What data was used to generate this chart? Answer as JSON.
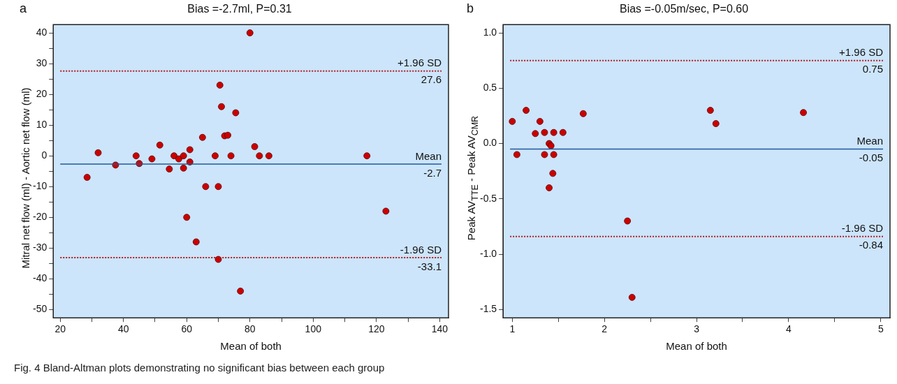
{
  "chart_data": [
    {
      "type": "scatter",
      "title": "Bias =-2.7ml, P=0.31",
      "xlabel": "Mean of both",
      "ylabel": "Mitral net flow (ml) - Aortic net flow (ml)",
      "annotations": [
        "a",
        "Fig. 4 Bland-Altman plots demonstrating no significant bias between each group",
        {
          "text": "27.6",
          "y": 27.6
        },
        {
          "text": "-2.7",
          "y": -2.7
        },
        {
          "text": "-33.1",
          "y": -33.1
        }
      ],
      "xlim": [
        17.8,
        142.8
      ],
      "xticks": [
        20,
        {
          "value": 30,
          "label": null
        },
        40,
        {
          "value": 50,
          "label": null
        },
        60,
        {
          "value": 70,
          "label": null
        },
        80,
        {
          "value": 90,
          "label": null
        },
        100,
        {
          "value": 110,
          "label": null
        },
        120,
        {
          "value": 130,
          "label": null
        },
        140
      ],
      "ylim": [
        -52.7,
        42.7
      ],
      "yticks": [
        -50,
        {
          "value": -45,
          "label": null
        },
        -40,
        {
          "value": -35,
          "label": null
        },
        -30,
        {
          "value": -25,
          "label": null
        },
        -20,
        {
          "value": -15,
          "label": null
        },
        -10,
        {
          "value": -5,
          "label": null
        },
        0,
        {
          "value": 5,
          "label": null
        },
        10,
        {
          "value": 15,
          "label": null
        },
        20,
        {
          "value": 25,
          "label": null
        },
        30,
        {
          "value": 35,
          "label": null
        },
        40
      ],
      "legend": false,
      "marker": "circle",
      "ref_lines": [
        {
          "axis": "y",
          "value": 27.6,
          "label": "+1.96 SD",
          "color": "#b01c1c",
          "line_style": "dotted"
        },
        {
          "axis": "y",
          "value": -2.7,
          "label": "Mean",
          "color": "#1f5a9e",
          "line_style": "solid"
        },
        {
          "axis": "y",
          "value": -33.1,
          "label": "-1.96 SD",
          "color": "#b01c1c",
          "line_style": "dotted"
        }
      ],
      "series": [
        {
          "color": "#cc0000",
          "x": [
            28.5,
            32,
            37.5,
            44,
            45,
            49,
            51.5,
            54.5,
            56,
            57.5,
            59,
            59,
            60,
            61,
            61,
            63,
            65,
            66,
            69,
            70,
            70,
            70.5,
            71,
            72,
            73,
            74,
            75.5,
            77,
            80,
            81.5,
            83,
            86,
            117,
            123
          ],
          "values": [
            -7,
            1,
            -3,
            0,
            -2.5,
            -1,
            3.5,
            -4.3,
            0,
            -1,
            0,
            -4,
            -20,
            2,
            -2,
            -28,
            6,
            -10,
            0,
            -10,
            -33.7,
            23,
            16,
            6.5,
            6.7,
            0,
            14,
            -44,
            40,
            3,
            0,
            0,
            0,
            -18
          ]
        }
      ]
    },
    {
      "type": "scatter",
      "title": "Bias =-0.05m/sec, P=0.60",
      "xlabel": "Mean of both",
      "ylabel": "Peak AV$_{TTE}$ - Peak AV$_{CMR}$",
      "annotations": [
        "b",
        {
          "text": "0.75",
          "y": 0.75
        },
        {
          "text": "-0.05",
          "y": -0.05
        },
        {
          "text": "-0.84",
          "y": -0.84
        }
      ],
      "xlim": [
        0.9,
        5.1
      ],
      "xticks": [
        1,
        {
          "value": 1.5,
          "label": null
        },
        2,
        {
          "value": 2.5,
          "label": null
        },
        3,
        {
          "value": 3.5,
          "label": null
        },
        4,
        {
          "value": 4.5,
          "label": null
        },
        5
      ],
      "ylim": [
        -1.575,
        1.075
      ],
      "yticks": [
        {
          "value": -1.5,
          "label": "-1.5"
        },
        {
          "value": -1,
          "label": "-1.0"
        },
        {
          "value": -0.5,
          "label": "-0.5"
        },
        {
          "value": 0,
          "label": "0.0"
        },
        {
          "value": 0.5,
          "label": "0.5"
        },
        {
          "value": 1,
          "label": "1.0"
        }
      ],
      "legend": false,
      "marker": "circle",
      "ref_lines": [
        {
          "axis": "y",
          "value": 0.75,
          "label": "+1.96 SD",
          "color": "#b01c1c",
          "line_style": "dotted"
        },
        {
          "axis": "y",
          "value": -0.05,
          "label": "Mean",
          "color": "#1f5a9e",
          "line_style": "solid"
        },
        {
          "axis": "y",
          "value": -0.84,
          "label": "-1.96 SD",
          "color": "#b01c1c",
          "line_style": "dotted"
        }
      ],
      "series": [
        {
          "color": "#cc0000",
          "x": [
            1,
            1.05,
            1.15,
            1.25,
            1.3,
            1.35,
            1.35,
            1.4,
            1.42,
            1.44,
            1.4,
            1.45,
            1.45,
            1.55,
            1.77,
            2.25,
            2.3,
            3.15,
            3.21,
            4.16
          ],
          "values": [
            0.2,
            -0.1,
            0.3,
            0.09,
            0.2,
            0.1,
            -0.1,
            0,
            -0.02,
            -0.27,
            -0.4,
            0.1,
            -0.1,
            0.1,
            0.27,
            -0.7,
            -1.39,
            0.3,
            0.18,
            0.28
          ]
        }
      ]
    }
  ]
}
